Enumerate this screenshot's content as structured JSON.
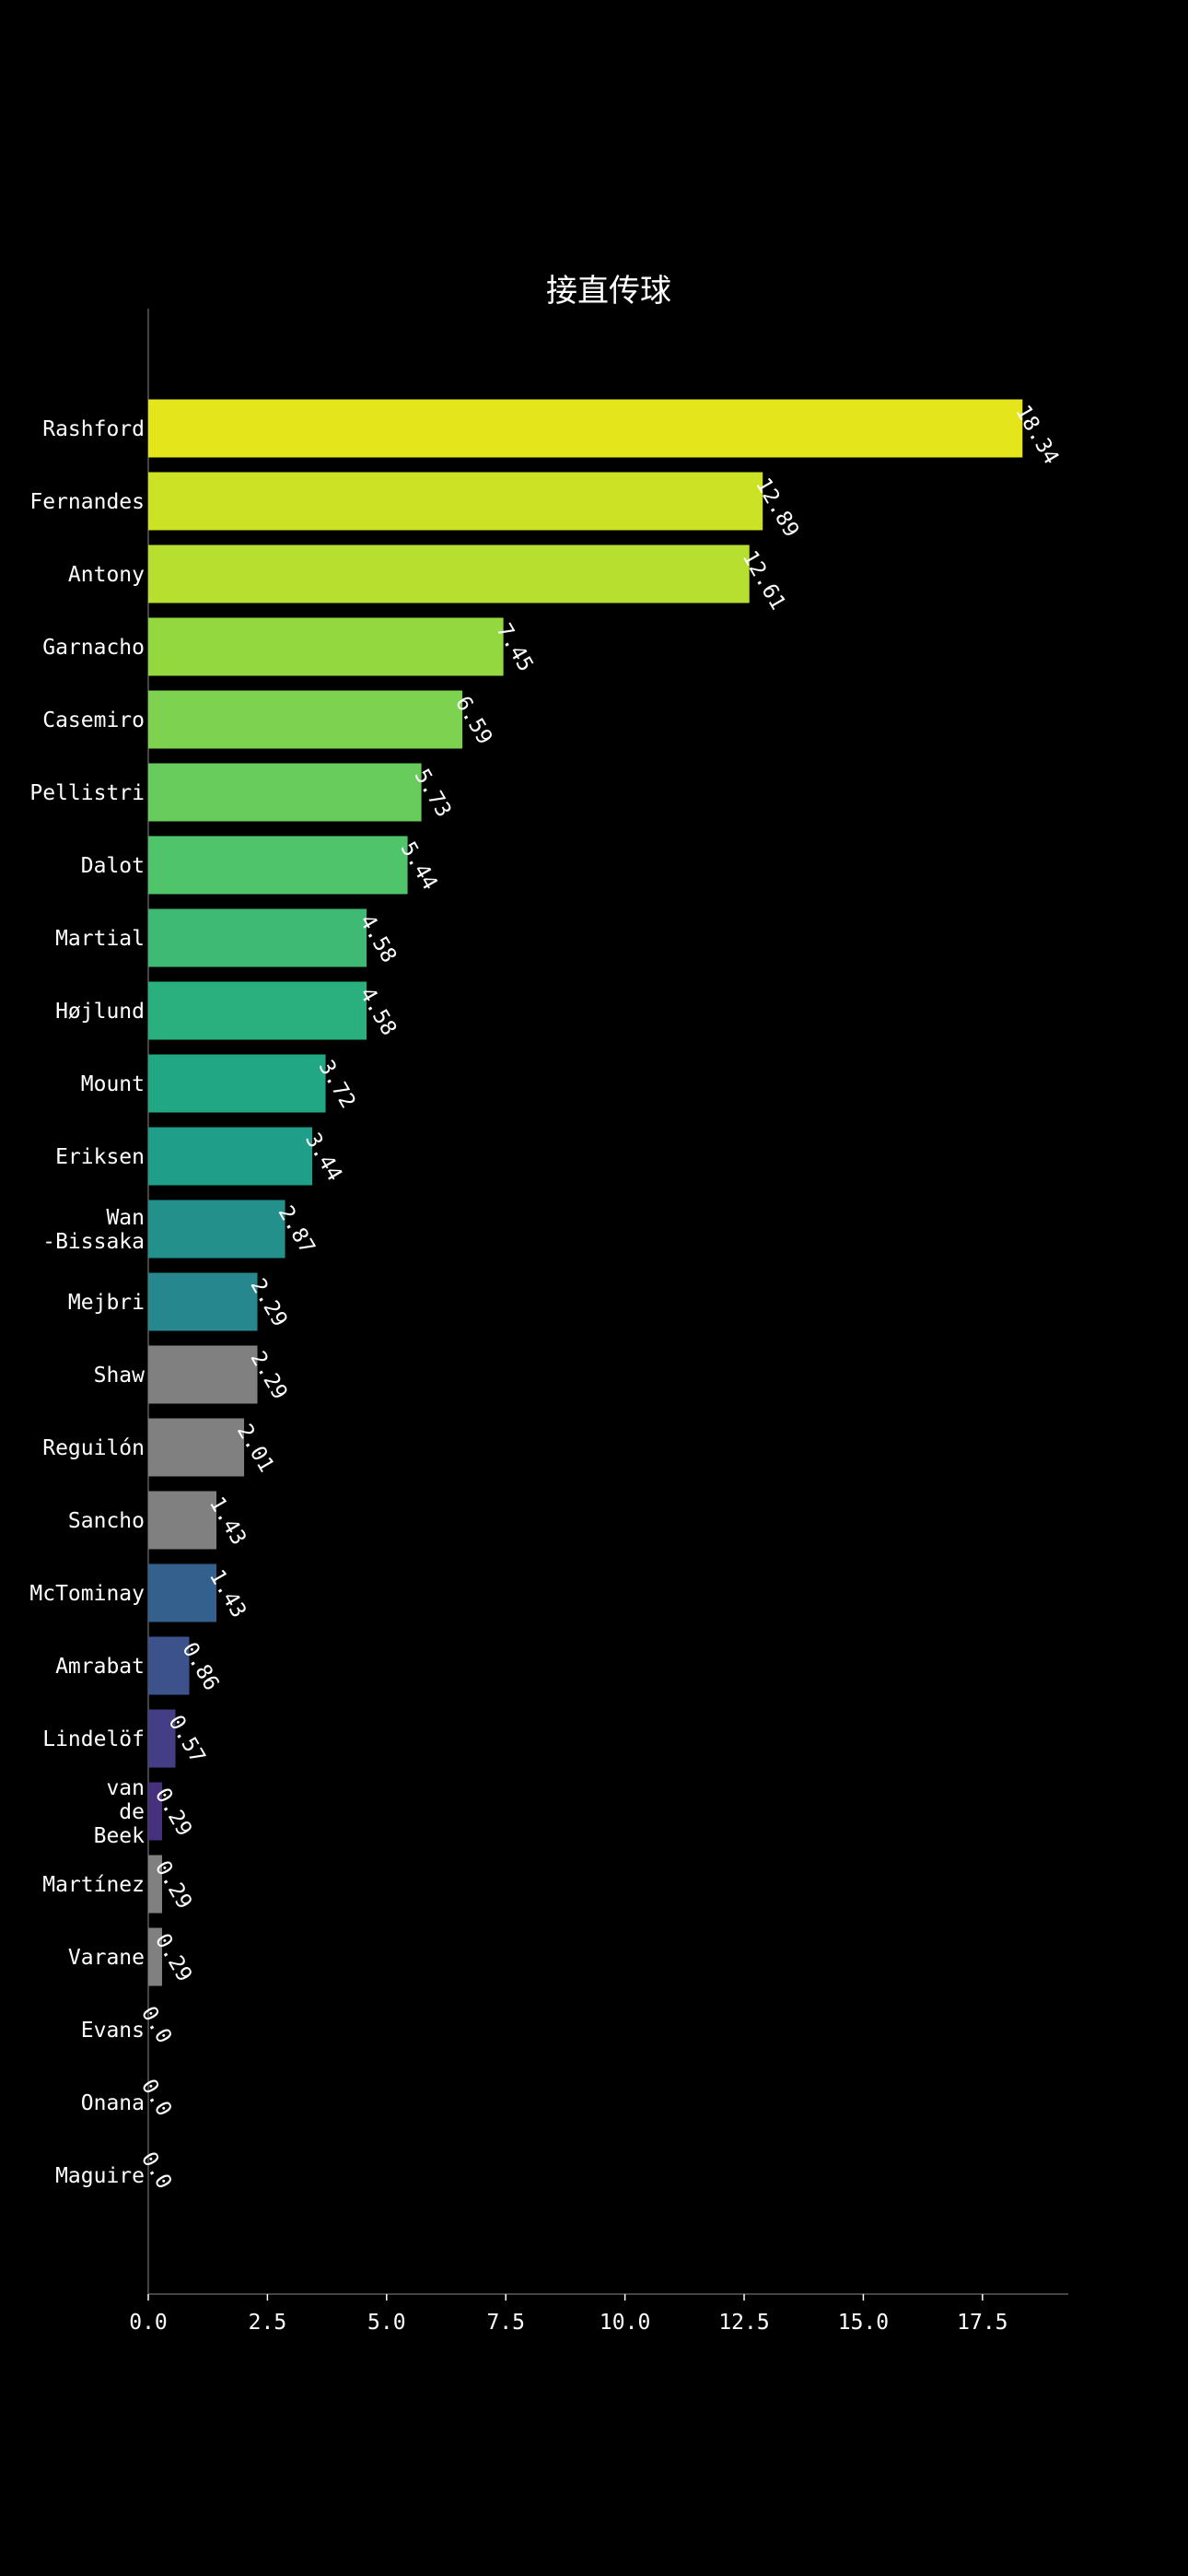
{
  "chart_data": {
    "type": "bar",
    "orientation": "horizontal",
    "title": "接直传球",
    "xlabel": "",
    "ylabel": "",
    "xlim": [
      0,
      19.3
    ],
    "xticks": [
      "0.0",
      "2.5",
      "5.0",
      "7.5",
      "10.0",
      "12.5",
      "15.0",
      "17.5"
    ],
    "tick_values": [
      0,
      2.5,
      5.0,
      7.5,
      10.0,
      12.5,
      15.0,
      17.5
    ],
    "grid": false,
    "legend": "none",
    "background": "#000000",
    "text_color": "#ffffff",
    "categories": [
      [
        "Rashford"
      ],
      [
        "Fernandes"
      ],
      [
        "Antony"
      ],
      [
        "Garnacho"
      ],
      [
        "Casemiro"
      ],
      [
        "Pellistri"
      ],
      [
        "Dalot"
      ],
      [
        "Martial"
      ],
      [
        "Højlund"
      ],
      [
        "Mount"
      ],
      [
        "Eriksen"
      ],
      [
        "Wan",
        "-Bissaka"
      ],
      [
        "Mejbri"
      ],
      [
        "Shaw"
      ],
      [
        "Reguilón"
      ],
      [
        "Sancho"
      ],
      [
        "McTominay"
      ],
      [
        "Amrabat"
      ],
      [
        "Lindelöf"
      ],
      [
        "van",
        "de",
        "Beek"
      ],
      [
        "Martínez"
      ],
      [
        "Varane"
      ],
      [
        "Evans"
      ],
      [
        "Onana"
      ],
      [
        "Maguire"
      ]
    ],
    "values": [
      18.34,
      12.89,
      12.61,
      7.45,
      6.59,
      5.73,
      5.44,
      4.58,
      4.58,
      3.72,
      3.44,
      2.87,
      2.29,
      2.29,
      2.01,
      1.43,
      1.43,
      0.86,
      0.57,
      0.29,
      0.29,
      0.29,
      0.0,
      0.0,
      0.0
    ],
    "value_labels": [
      "18.34",
      "12.89",
      "12.61",
      "7.45",
      "6.59",
      "5.73",
      "5.44",
      "4.58",
      "4.58",
      "3.72",
      "3.44",
      "2.87",
      "2.29",
      "2.29",
      "2.01",
      "1.43",
      "1.43",
      "0.86",
      "0.57",
      "0.29",
      "0.29",
      "0.29",
      "0.0",
      "0.0",
      "0.0"
    ],
    "colors": [
      "#e4e51a",
      "#cce325",
      "#b6df2f",
      "#94d840",
      "#7dd250",
      "#67cc5c",
      "#50c46a",
      "#3eba74",
      "#2ab07f",
      "#22a785",
      "#1f9e89",
      "#24908c",
      "#26888e",
      "#808080",
      "#808080",
      "#808080",
      "#34608d",
      "#3b528b",
      "#433e85",
      "#46317e",
      "#808080",
      "#808080",
      "#808080",
      "#808080",
      "#808080"
    ]
  }
}
